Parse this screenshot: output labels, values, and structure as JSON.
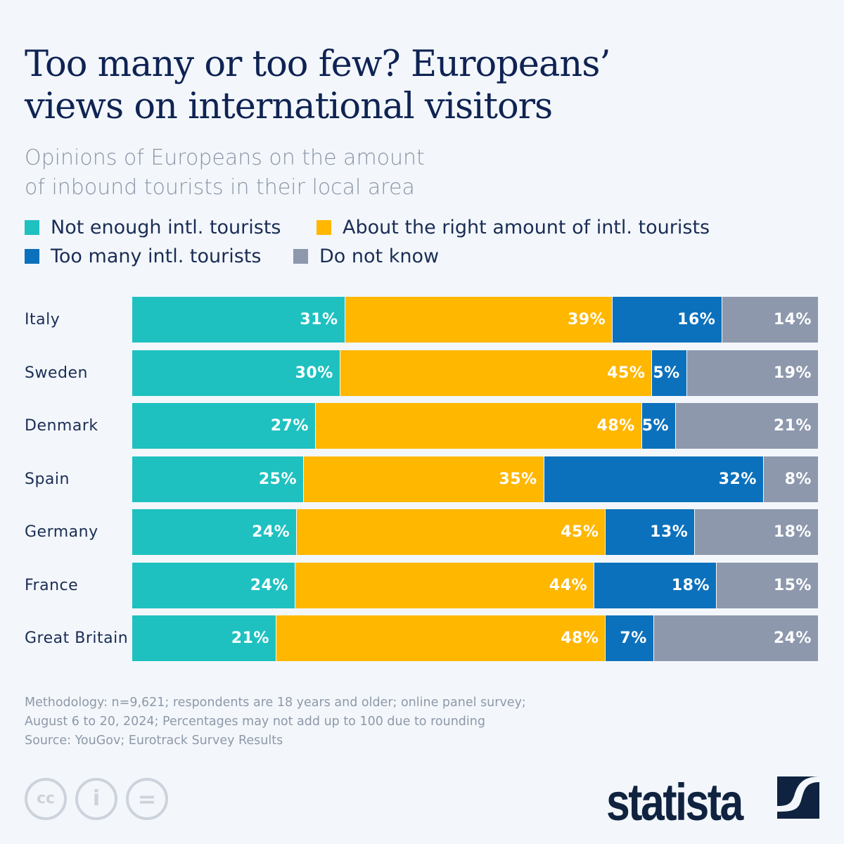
{
  "chart_data": {
    "type": "bar",
    "orientation": "horizontal",
    "stacked": true,
    "title": "Too many or too few? Europeans’ views on international visitors",
    "title_lines": [
      "Too many or too few? Europeans’",
      "views on international visitors"
    ],
    "subtitle_lines": [
      "Opinions of Europeans on the amount",
      "of inbound tourists in their local area"
    ],
    "legend_placement": "top",
    "grid": false,
    "categories": [
      "Italy",
      "Sweden",
      "Denmark",
      "Spain",
      "Germany",
      "France",
      "Great Britain"
    ],
    "series": [
      {
        "name": "Not enough intl. tourists",
        "color": "#1ec1c0",
        "values": [
          31,
          30,
          27,
          25,
          24,
          24,
          21
        ]
      },
      {
        "name": "About the right amount of intl. tourists",
        "color": "#ffb700",
        "values": [
          39,
          45,
          48,
          35,
          45,
          44,
          48
        ]
      },
      {
        "name": "Too many intl. tourists",
        "color": "#0b71bc",
        "values": [
          16,
          5,
          5,
          32,
          13,
          18,
          7
        ]
      },
      {
        "name": "Do not know",
        "color": "#8d98ad",
        "values": [
          14,
          19,
          21,
          8,
          18,
          15,
          24
        ]
      }
    ],
    "value_suffix": "%"
  },
  "footer": {
    "methodology_lines": [
      "Methodology: n=9,621; respondents are 18 years and older; online panel survey;",
      "August 6 to 20, 2024; Percentages may not add up to 100 due to rounding"
    ],
    "source": "Source: YouGov; Eurotrack Survey Results",
    "license_icons": [
      "cc-icon",
      "attribution-icon",
      "no-derivatives-icon"
    ],
    "license_glyphs": [
      "cc",
      "i",
      "="
    ],
    "logo": "statista"
  }
}
